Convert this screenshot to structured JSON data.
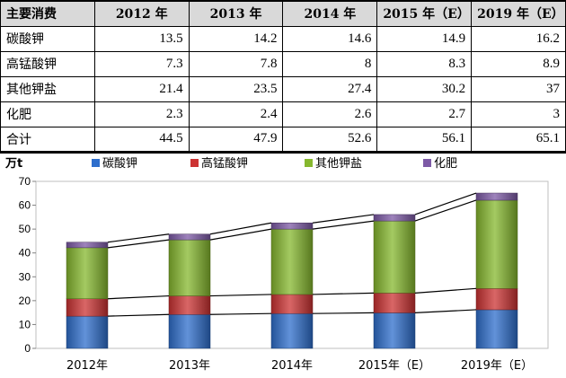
{
  "table": {
    "header_label": "主要消费",
    "columns": [
      "2012 年",
      "2013 年",
      "2014 年",
      "2015 年（E）",
      "2019 年（E）"
    ],
    "rows": [
      {
        "label": "碳酸钾",
        "values": [
          "13.5",
          "14.2",
          "14.6",
          "14.9",
          "16.2"
        ]
      },
      {
        "label": "高锰酸钾",
        "values": [
          "7.3",
          "7.8",
          "8",
          "8.3",
          "8.9"
        ]
      },
      {
        "label": "其他钾盐",
        "values": [
          "21.4",
          "23.5",
          "27.4",
          "30.2",
          "37"
        ]
      },
      {
        "label": "化肥",
        "values": [
          "2.3",
          "2.4",
          "2.6",
          "2.7",
          "3"
        ]
      },
      {
        "label": "合计",
        "values": [
          "44.5",
          "47.9",
          "52.6",
          "56.1",
          "65.1"
        ]
      }
    ]
  },
  "chart_data": {
    "type": "bar",
    "stacked": true,
    "unit_label": "万t",
    "categories": [
      "2012年",
      "2013年",
      "2014年",
      "2015年（E）",
      "2019年（E）"
    ],
    "series": [
      {
        "name": "碳酸钾",
        "values": [
          13.5,
          14.2,
          14.6,
          14.9,
          16.2
        ],
        "color": "#2e6ecc"
      },
      {
        "name": "高锰酸钾",
        "values": [
          7.3,
          7.8,
          8,
          8.3,
          8.9
        ],
        "color": "#cc3333"
      },
      {
        "name": "其他钾盐",
        "values": [
          21.4,
          23.5,
          27.4,
          30.2,
          37
        ],
        "color": "#86b82e"
      },
      {
        "name": "化肥",
        "values": [
          2.3,
          2.4,
          2.6,
          2.7,
          3
        ],
        "color": "#7d5aa6"
      }
    ],
    "ylim": [
      0,
      70
    ],
    "yticks": [
      0,
      10,
      20,
      30,
      40,
      50,
      60,
      70
    ],
    "connector_lines": true,
    "legend_position": "top",
    "grid": false
  }
}
